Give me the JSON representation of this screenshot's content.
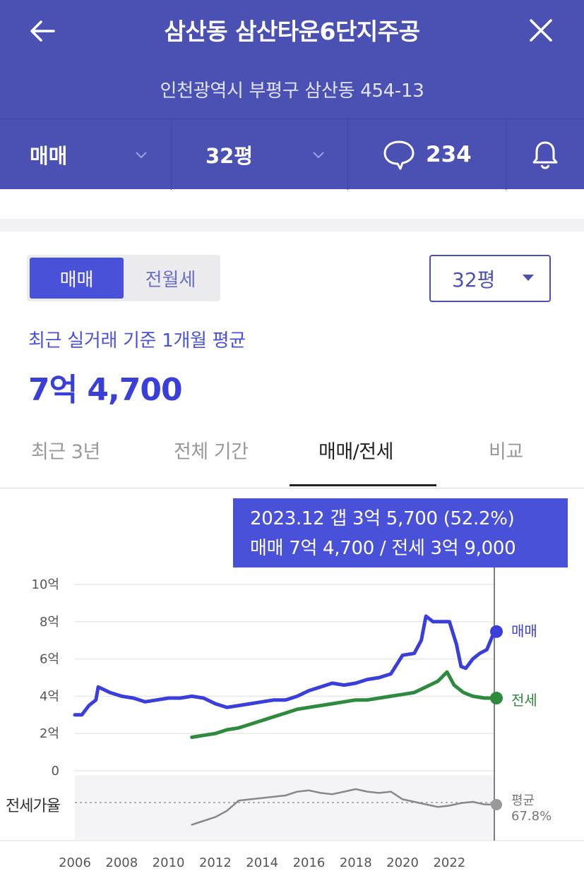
{
  "header": {
    "title": "삼산동 삼산타운6단지주공",
    "address": "인천광역시 부평구 삼산동 454-13",
    "trade_type": "매매",
    "size": "32평",
    "comment_count": "234",
    "icons": [
      "back-arrow-icon",
      "close-icon",
      "chevron-down-icon",
      "speech-bubble-icon",
      "bell-icon"
    ]
  },
  "controls": {
    "toggle_options": [
      "매매",
      "전월세"
    ],
    "toggle_active": "매매",
    "size_select": "32평"
  },
  "summary": {
    "label": "최근 실거래 기준 1개월 평균",
    "price": "7억 4,700"
  },
  "tabs": [
    "최근 3년",
    "전체 기간",
    "매매/전세",
    "비교"
  ],
  "active_tab": "매매/전세",
  "tooltip": {
    "line1": "2023.12  갭 3억 5,700 (52.2%)",
    "line2": "매매 7억 4,700 / 전세 3억 9,000"
  },
  "colors": {
    "brand": "#4a51b3",
    "sale": "#3b3fd9",
    "jeonse": "#2e8b3e",
    "ratio": "#888888"
  },
  "chart_data": {
    "type": "line",
    "ylabel": "",
    "y_ticks": [
      "10억",
      "8억",
      "6억",
      "4억",
      "2억",
      "0"
    ],
    "x_ticks": [
      "2006",
      "2008",
      "2010",
      "2012",
      "2014",
      "2016",
      "2018",
      "2020",
      "2022"
    ],
    "ylim": [
      0,
      10
    ],
    "xlim": [
      2006,
      2024
    ],
    "grid": true,
    "series": [
      {
        "name": "매매",
        "x": [
          2006.0,
          2006.3,
          2006.6,
          2006.9,
          2007.0,
          2007.5,
          2008.0,
          2008.5,
          2009.0,
          2009.5,
          2010.0,
          2010.5,
          2011.0,
          2011.5,
          2012.0,
          2012.5,
          2013.0,
          2013.5,
          2014.0,
          2014.5,
          2015.0,
          2015.5,
          2016.0,
          2016.5,
          2017.0,
          2017.5,
          2018.0,
          2018.5,
          2019.0,
          2019.5,
          2020.0,
          2020.5,
          2020.8,
          2021.0,
          2021.3,
          2021.6,
          2022.0,
          2022.3,
          2022.5,
          2022.7,
          2023.0,
          2023.3,
          2023.6,
          2023.92
        ],
        "values": [
          3.0,
          3.0,
          3.5,
          3.8,
          4.5,
          4.2,
          4.0,
          3.9,
          3.7,
          3.8,
          3.9,
          3.9,
          4.0,
          3.9,
          3.6,
          3.4,
          3.5,
          3.6,
          3.7,
          3.8,
          3.8,
          4.0,
          4.3,
          4.5,
          4.7,
          4.6,
          4.7,
          4.9,
          5.0,
          5.2,
          6.2,
          6.3,
          7.0,
          8.3,
          8.0,
          8.0,
          8.0,
          6.8,
          5.6,
          5.5,
          6.0,
          6.3,
          6.5,
          7.47
        ]
      },
      {
        "name": "전세",
        "x": [
          2011.0,
          2011.5,
          2012.0,
          2012.5,
          2013.0,
          2013.5,
          2014.0,
          2014.5,
          2015.0,
          2015.5,
          2016.0,
          2016.5,
          2017.0,
          2017.5,
          2018.0,
          2018.5,
          2019.0,
          2019.5,
          2020.0,
          2020.5,
          2021.0,
          2021.5,
          2021.9,
          2022.2,
          2022.6,
          2023.0,
          2023.5,
          2023.92
        ],
        "values": [
          1.8,
          1.9,
          2.0,
          2.2,
          2.3,
          2.5,
          2.7,
          2.9,
          3.1,
          3.3,
          3.4,
          3.5,
          3.6,
          3.7,
          3.8,
          3.8,
          3.9,
          4.0,
          4.1,
          4.2,
          4.5,
          4.8,
          5.3,
          4.6,
          4.2,
          4.0,
          3.9,
          3.9
        ]
      },
      {
        "name": "전세가율",
        "x": [
          2011.0,
          2011.5,
          2012.0,
          2012.5,
          2013.0,
          2013.5,
          2014.0,
          2014.5,
          2015.0,
          2015.5,
          2016.0,
          2016.5,
          2017.0,
          2017.5,
          2018.0,
          2018.5,
          2019.0,
          2019.5,
          2020.0,
          2020.5,
          2021.0,
          2021.5,
          2022.0,
          2022.5,
          2023.0,
          2023.5,
          2023.92
        ],
        "values": [
          52,
          55,
          58,
          63,
          71,
          72,
          73,
          74,
          75,
          78,
          79,
          77,
          76,
          78,
          80,
          78,
          77,
          78,
          72,
          70,
          68,
          66,
          67,
          69,
          70,
          68,
          67.8
        ]
      }
    ],
    "end_labels": {
      "sale": "매매",
      "jeonse": "전세",
      "ratio_title": "평균",
      "ratio_value": "67.8%",
      "ratio_axis": "전세가율"
    }
  }
}
